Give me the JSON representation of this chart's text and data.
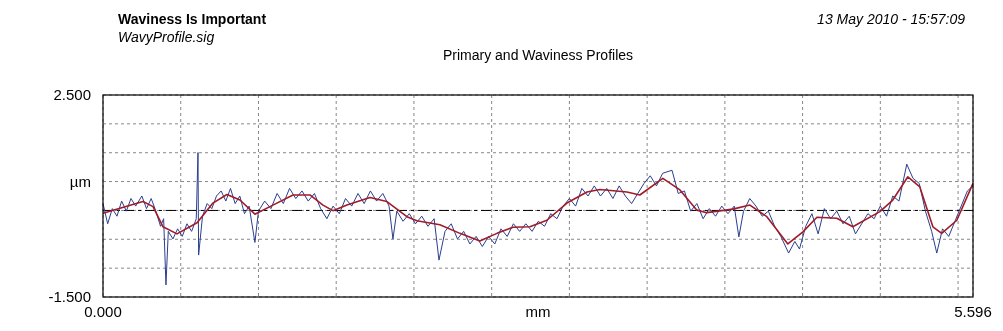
{
  "chart_data": {
    "type": "line",
    "title": "Primary and Waviness Profiles",
    "xlabel": "mm",
    "ylabel": "µm",
    "annotations": [
      "Waviness Is Important",
      "WavyProfile.sig",
      "13 May 2010 - 15:57:09"
    ],
    "xlim": [
      0,
      5.596
    ],
    "ylim": [
      -1.5,
      2.5
    ],
    "xticks": [
      {
        "value": 0,
        "label": "0.000"
      },
      {
        "value": 0.5,
        "label": null
      },
      {
        "value": 1,
        "label": null
      },
      {
        "value": 1.5,
        "label": null
      },
      {
        "value": 2,
        "label": null
      },
      {
        "value": 2.5,
        "label": null
      },
      {
        "value": 3,
        "label": null
      },
      {
        "value": 3.5,
        "label": null
      },
      {
        "value": 4,
        "label": null
      },
      {
        "value": 4.5,
        "label": null
      },
      {
        "value": 5,
        "label": null
      },
      {
        "value": 5.5,
        "label": null
      },
      {
        "value": 5.596,
        "label": "5.596"
      }
    ],
    "yticks": [
      {
        "value": -1.5,
        "label": "-1.500"
      },
      {
        "value": -0.929,
        "label": null
      },
      {
        "value": -0.357,
        "label": null
      },
      {
        "value": 0.214,
        "label": null
      },
      {
        "value": 0.786,
        "label": null
      },
      {
        "value": 1.357,
        "label": null
      },
      {
        "value": 1.929,
        "label": null
      },
      {
        "value": 2.5,
        "label": "2.500"
      }
    ],
    "grid": true,
    "line_style": "solid",
    "marker": "none",
    "ref_lines": [
      {
        "axis": "y",
        "value": 0.214,
        "color": "#000000"
      }
    ],
    "series": [
      {
        "color": "#2b3f8f",
        "x": [
          0,
          0.03,
          0.06,
          0.09,
          0.12,
          0.15,
          0.18,
          0.21,
          0.25,
          0.28,
          0.31,
          0.34,
          0.37,
          0.39,
          0.405,
          0.42,
          0.45,
          0.48,
          0.51,
          0.54,
          0.57,
          0.6,
          0.611,
          0.615,
          0.64,
          0.67,
          0.7,
          0.73,
          0.76,
          0.79,
          0.82,
          0.85,
          0.88,
          0.91,
          0.94,
          0.977,
          1.0,
          1.04,
          1.08,
          1.12,
          1.16,
          1.2,
          1.24,
          1.28,
          1.32,
          1.36,
          1.4,
          1.44,
          1.48,
          1.52,
          1.56,
          1.6,
          1.64,
          1.68,
          1.72,
          1.76,
          1.8,
          1.84,
          1.865,
          1.89,
          1.93,
          1.97,
          2.01,
          2.05,
          2.09,
          2.13,
          2.161,
          2.2,
          2.24,
          2.28,
          2.32,
          2.36,
          2.4,
          2.44,
          2.48,
          2.52,
          2.56,
          2.6,
          2.64,
          2.68,
          2.72,
          2.76,
          2.8,
          2.84,
          2.88,
          2.92,
          2.96,
          3.0,
          3.04,
          3.08,
          3.12,
          3.16,
          3.2,
          3.24,
          3.28,
          3.32,
          3.36,
          3.4,
          3.44,
          3.48,
          3.52,
          3.56,
          3.6,
          3.66,
          3.7,
          3.74,
          3.78,
          3.82,
          3.86,
          3.9,
          3.94,
          3.98,
          4.02,
          4.06,
          4.09,
          4.12,
          4.16,
          4.2,
          4.24,
          4.28,
          4.32,
          4.36,
          4.41,
          4.45,
          4.48,
          4.52,
          4.56,
          4.6,
          4.64,
          4.68,
          4.72,
          4.76,
          4.8,
          4.84,
          4.88,
          4.92,
          4.96,
          5.0,
          5.04,
          5.08,
          5.12,
          5.17,
          5.21,
          5.25,
          5.29,
          5.33,
          5.363,
          5.4,
          5.44,
          5.48,
          5.52,
          5.56,
          5.596
        ],
        "values": [
          0.35,
          -0.05,
          0.25,
          0.1,
          0.4,
          0.2,
          0.45,
          0.3,
          0.5,
          0.25,
          0.45,
          0.2,
          -0.1,
          0.05,
          -1.26,
          -0.2,
          -0.35,
          -0.15,
          -0.3,
          -0.05,
          -0.2,
          0.05,
          1.36,
          -0.67,
          0.1,
          0.35,
          0.25,
          0.5,
          0.6,
          0.4,
          0.65,
          0.35,
          0.5,
          0.15,
          0.3,
          -0.42,
          0.2,
          0.4,
          0.25,
          0.55,
          0.35,
          0.65,
          0.45,
          0.6,
          0.4,
          0.55,
          0.25,
          0.05,
          0.3,
          0.15,
          0.45,
          0.3,
          0.55,
          0.35,
          0.6,
          0.4,
          0.55,
          0.3,
          -0.35,
          0.2,
          0.0,
          0.15,
          -0.05,
          0.1,
          -0.1,
          0.05,
          -0.77,
          -0.2,
          -0.05,
          -0.35,
          -0.2,
          -0.45,
          -0.3,
          -0.5,
          -0.3,
          -0.45,
          -0.15,
          -0.3,
          -0.05,
          -0.2,
          -0.05,
          -0.2,
          0.0,
          -0.1,
          0.15,
          0.05,
          0.3,
          0.45,
          0.3,
          0.65,
          0.5,
          0.7,
          0.5,
          0.65,
          0.45,
          0.7,
          0.5,
          0.35,
          0.55,
          0.75,
          0.9,
          0.7,
          0.95,
          1.01,
          0.55,
          0.6,
          0.2,
          0.35,
          0.05,
          0.25,
          0.1,
          0.3,
          0.15,
          0.3,
          -0.31,
          0.2,
          0.45,
          0.3,
          0.1,
          0.2,
          -0.1,
          -0.3,
          -0.63,
          -0.4,
          -0.55,
          -0.1,
          0.15,
          -0.25,
          0.25,
          0.05,
          0.2,
          -0.05,
          0.1,
          -0.25,
          -0.05,
          0.15,
          0.05,
          0.3,
          0.1,
          0.5,
          0.4,
          1.13,
          0.85,
          0.75,
          0.2,
          -0.2,
          -0.63,
          -0.15,
          -0.3,
          0.0,
          0.3,
          0.6,
          0.7
        ]
      },
      {
        "color": "#a01c28",
        "x": [
          0,
          0.257,
          0.322,
          0.386,
          0.476,
          0.605,
          0.707,
          0.797,
          0.881,
          0.977,
          1.093,
          1.222,
          1.331,
          1.415,
          1.479,
          1.569,
          1.717,
          1.826,
          1.955,
          2.019,
          2.167,
          2.296,
          2.424,
          2.534,
          2.637,
          2.746,
          2.855,
          2.984,
          3.113,
          3.196,
          3.37,
          3.453,
          3.601,
          3.711,
          3.82,
          3.884,
          4.051,
          4.161,
          4.27,
          4.405,
          4.502,
          4.592,
          4.72,
          4.823,
          4.997,
          5.08,
          5.177,
          5.254,
          5.338,
          5.395,
          5.492,
          5.596
        ],
        "values": [
          0.16,
          0.39,
          0.29,
          -0.11,
          -0.25,
          -0.03,
          0.36,
          0.53,
          0.42,
          0.14,
          0.32,
          0.52,
          0.52,
          0.32,
          0.21,
          0.32,
          0.47,
          0.39,
          0.09,
          0.01,
          -0.07,
          -0.24,
          -0.39,
          -0.24,
          -0.12,
          -0.11,
          0.02,
          0.36,
          0.58,
          0.63,
          0.58,
          0.52,
          0.85,
          0.62,
          0.22,
          0.17,
          0.24,
          0.32,
          0.09,
          -0.45,
          -0.21,
          0.08,
          0.06,
          -0.11,
          0.19,
          0.42,
          0.88,
          0.68,
          -0.11,
          -0.24,
          0.02,
          0.75
        ]
      }
    ]
  }
}
